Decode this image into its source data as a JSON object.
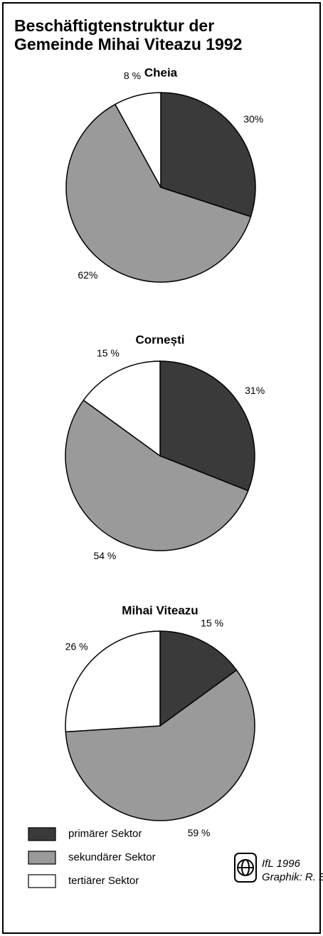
{
  "title": [
    "Beschäftigtenstruktur der",
    "Gemeinde Mihai Viteazu 1992"
  ],
  "legend": {
    "names": [
      "primärer  Sektor",
      "sekundärer Sektor",
      "tertiärer Sektor"
    ],
    "colors": [
      "#3a3a3a",
      "#9a9a9a",
      "#ffffff"
    ]
  },
  "chart_data": [
    {
      "type": "pie",
      "title": "Cheia",
      "values": [
        30,
        62,
        8
      ],
      "value_labels": [
        "30%",
        "62%",
        "8 %"
      ]
    },
    {
      "type": "pie",
      "title": "Cornești",
      "values": [
        31,
        54,
        15
      ],
      "value_labels": [
        "31%",
        "54 %",
        "15 %"
      ]
    },
    {
      "type": "pie",
      "title": "Mihai Viteazu",
      "values": [
        15,
        59,
        26
      ],
      "value_labels": [
        "15 %",
        "59 %",
        "26 %"
      ]
    }
  ],
  "credits": [
    "IfL 1996",
    "Graphik: R. Bräuer"
  ]
}
